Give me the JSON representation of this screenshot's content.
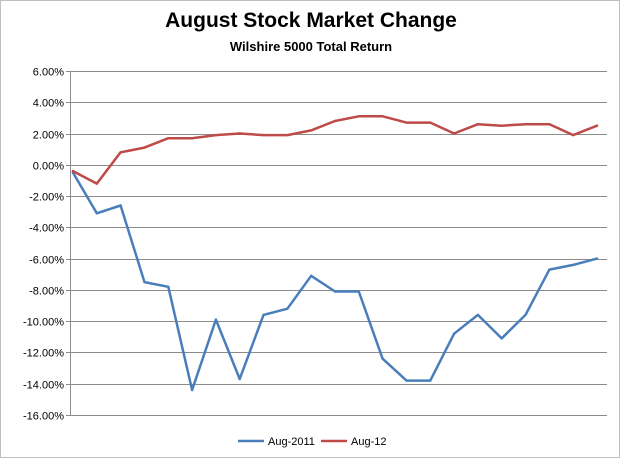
{
  "chart_data": {
    "type": "line",
    "title": "August Stock Market Change",
    "subtitle": "Wilshire 5000 Total Return",
    "xlabel": "",
    "ylabel": "",
    "ylim": [
      -16,
      6
    ],
    "y_ticks": [
      "6.00%",
      "4.00%",
      "2.00%",
      "0.00%",
      "-2.00%",
      "-4.00%",
      "-6.00%",
      "-8.00%",
      "-10.00%",
      "-12.00%",
      "-14.00%",
      "-16.00%"
    ],
    "y_tick_values": [
      6,
      4,
      2,
      0,
      -2,
      -4,
      -6,
      -8,
      -10,
      -12,
      -14,
      -16
    ],
    "grid": true,
    "legend_position": "bottom",
    "x": [
      1,
      2,
      3,
      4,
      5,
      6,
      7,
      8,
      9,
      10,
      11,
      12,
      13,
      14,
      15,
      16,
      17,
      18,
      19,
      20,
      21,
      22,
      23
    ],
    "series": [
      {
        "name": "Aug-2011",
        "color": "#4a7ebb",
        "values": [
          -0.5,
          -3.1,
          -2.6,
          -7.5,
          -7.8,
          -14.4,
          -9.9,
          -13.7,
          -9.6,
          -9.2,
          -7.1,
          -8.1,
          -8.1,
          -12.4,
          -13.8,
          -13.8,
          -10.8,
          -9.6,
          -11.1,
          -9.6,
          -6.7,
          -6.4,
          -6.0
        ]
      },
      {
        "name": "Aug-12",
        "color": "#be4b48",
        "values": [
          -0.4,
          -1.2,
          0.8,
          1.1,
          1.7,
          1.7,
          1.9,
          2.0,
          1.9,
          1.9,
          2.2,
          2.8,
          3.1,
          3.1,
          2.7,
          2.7,
          2.0,
          2.6,
          2.5,
          2.6,
          2.6,
          1.9,
          2.5
        ]
      }
    ]
  }
}
